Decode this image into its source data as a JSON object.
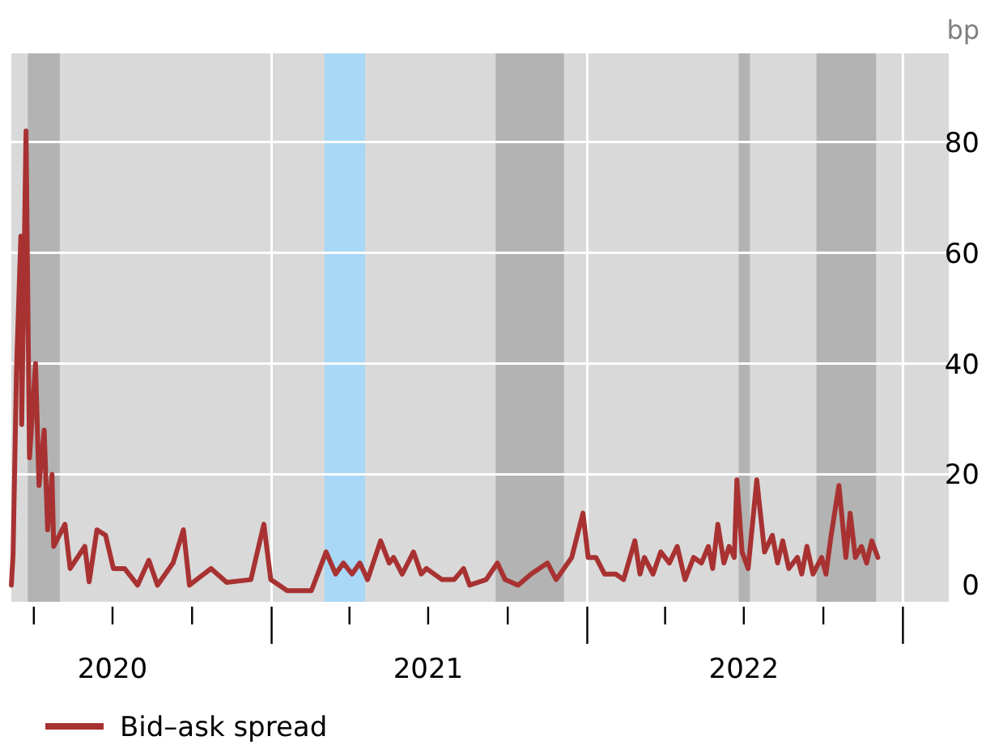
{
  "chart_data": {
    "type": "line",
    "ylabel": "bp",
    "x": [
      "2020-03-06",
      "2020-03-08",
      "2020-03-12",
      "2020-03-17",
      "2020-03-18",
      "2020-03-23",
      "2020-03-27",
      "2020-04-03",
      "2020-04-07",
      "2020-04-13",
      "2020-04-17",
      "2020-04-22",
      "2020-04-24",
      "2020-05-07",
      "2020-05-13",
      "2020-05-30",
      "2020-06-04",
      "2020-06-13",
      "2020-06-23",
      "2020-07-02",
      "2020-07-15",
      "2020-07-30",
      "2020-08-12",
      "2020-08-22",
      "2020-09-09",
      "2020-09-21",
      "2020-09-28",
      "2020-10-23",
      "2020-11-10",
      "2020-12-08",
      "2020-12-23",
      "2020-12-31",
      "2021-01-19",
      "2021-02-16",
      "2021-03-05",
      "2021-03-16",
      "2021-03-25",
      "2021-04-04",
      "2021-04-13",
      "2021-04-22",
      "2021-05-07",
      "2021-05-17",
      "2021-05-22",
      "2021-06-01",
      "2021-06-14",
      "2021-06-23",
      "2021-06-29",
      "2021-07-17",
      "2021-07-31",
      "2021-08-11",
      "2021-08-18",
      "2021-09-06",
      "2021-09-19",
      "2021-09-28",
      "2021-10-13",
      "2021-10-28",
      "2021-11-16",
      "2021-11-26",
      "2021-12-14",
      "2021-12-27",
      "2022-01-02",
      "2022-01-11",
      "2022-01-21",
      "2022-02-03",
      "2022-02-12",
      "2022-02-25",
      "2022-03-03",
      "2022-03-08",
      "2022-03-18",
      "2022-03-27",
      "2022-04-06",
      "2022-04-15",
      "2022-04-24",
      "2022-05-04",
      "2022-05-13",
      "2022-05-21",
      "2022-05-26",
      "2022-06-01",
      "2022-06-08",
      "2022-06-14",
      "2022-06-20",
      "2022-06-23",
      "2022-06-29",
      "2022-07-06",
      "2022-07-16",
      "2022-07-25",
      "2022-08-03",
      "2022-08-09",
      "2022-08-15",
      "2022-08-22",
      "2022-09-01",
      "2022-09-06",
      "2022-09-12",
      "2022-09-19",
      "2022-09-29",
      "2022-10-04",
      "2022-10-10",
      "2022-10-19",
      "2022-10-27",
      "2022-11-01",
      "2022-11-07",
      "2022-11-14",
      "2022-11-20",
      "2022-11-26",
      "2022-12-03"
    ],
    "series": [
      {
        "name": "Bid–ask spread",
        "color": "#a83232",
        "values": [
          0,
          5.5,
          39,
          63,
          29,
          82,
          23,
          40,
          18,
          28,
          10,
          20,
          7,
          11,
          3,
          7,
          0.6,
          10,
          9,
          3,
          3,
          0,
          4.5,
          0,
          4,
          10,
          0,
          3,
          0.5,
          1,
          11,
          1,
          -1,
          -1,
          6,
          2,
          4,
          2,
          4,
          1,
          8,
          4,
          5,
          2,
          6,
          2,
          3,
          1,
          1,
          3,
          0,
          1,
          4,
          1,
          0,
          2,
          4,
          1,
          5,
          13,
          5,
          5,
          2,
          2,
          1,
          8,
          2,
          5,
          2,
          6,
          4,
          7,
          1,
          5,
          4,
          7,
          3,
          11,
          4,
          7,
          5,
          19,
          6,
          3,
          19,
          6,
          9,
          4,
          8,
          3,
          5,
          2,
          7,
          2,
          5,
          2,
          9,
          18,
          5,
          13,
          5,
          7,
          4,
          8,
          5
        ]
      }
    ],
    "xlim": [
      "2020-03-06",
      "2023-02-23"
    ],
    "xticks": [
      {
        "value": "2020-04-01",
        "label": null
      },
      {
        "value": "2020-07-01",
        "label": "2020"
      },
      {
        "value": "2020-10-01",
        "label": null
      },
      {
        "value": "2021-01-01",
        "label": null
      },
      {
        "value": "2021-04-01",
        "label": null
      },
      {
        "value": "2021-07-01",
        "label": "2021"
      },
      {
        "value": "2021-10-01",
        "label": null
      },
      {
        "value": "2022-01-01",
        "label": null
      },
      {
        "value": "2022-04-01",
        "label": null
      },
      {
        "value": "2022-07-01",
        "label": "2022"
      },
      {
        "value": "2022-10-01",
        "label": null
      },
      {
        "value": "2023-01-01",
        "label": null
      }
    ],
    "ylim": [
      -3,
      96
    ],
    "yticks": [
      0,
      20,
      40,
      60,
      80
    ],
    "grid": true,
    "bands": [
      {
        "axis": "x",
        "from": "2020-03-25",
        "to": "2020-05-01",
        "color": "#b3b3b3"
      },
      {
        "axis": "x",
        "from": "2021-03-03",
        "to": "2021-04-19",
        "color": "#a8d8f5"
      },
      {
        "axis": "x",
        "from": "2021-09-17",
        "to": "2021-12-05",
        "color": "#b3b3b3"
      },
      {
        "axis": "x",
        "from": "2022-06-25",
        "to": "2022-07-08",
        "color": "#b3b3b3"
      },
      {
        "axis": "x",
        "from": "2022-09-23",
        "to": "2022-12-01",
        "color": "#b3b3b3"
      }
    ],
    "legend": "bottom",
    "line_style": "solid",
    "marker": "none"
  }
}
